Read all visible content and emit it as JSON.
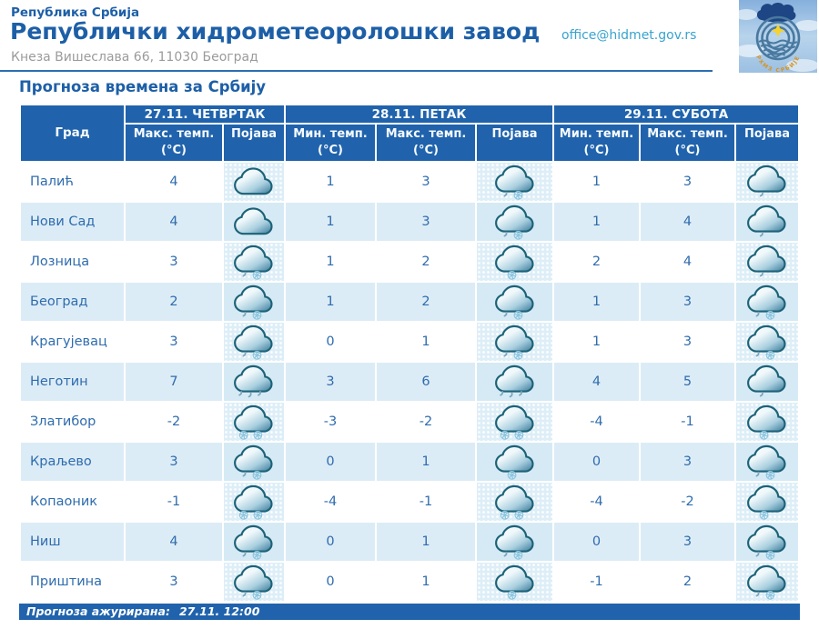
{
  "colors": {
    "header_bg": "#2063ac",
    "row_alt_bg": "#dcecf6",
    "icon_cell_bg": "#ddeef7",
    "text_blue": "#2f6cae",
    "title_blue": "#1d5fa7",
    "email_link": "#38a3cf",
    "divider": "#2d6cb4"
  },
  "header": {
    "country": "Република Србија",
    "org_title": "Републички хидрометеоролошки завод",
    "address": "Кнеза Вишеслава 66, 11030 Београд",
    "email": "office@hidmet.gov.rs",
    "logo_caption": "РХМЗ СРБИЈЕ"
  },
  "page_title": "Прогноза времена за Србију",
  "table": {
    "city_header": "Град",
    "day_groups": [
      {
        "label": "27.11. ЧЕТВРТАК"
      },
      {
        "label": "28.11. ПЕТАК"
      },
      {
        "label": "29.11. СУБОТА"
      }
    ],
    "columns": [
      {
        "label": "Макс. темп.",
        "unit": "(°C)"
      },
      {
        "label": "Појава",
        "unit": ""
      },
      {
        "label": "Мин. темп.",
        "unit": "(°C)"
      },
      {
        "label": "Макс. темп.",
        "unit": "(°C)"
      },
      {
        "label": "Појава",
        "unit": ""
      },
      {
        "label": "Мин. темп.",
        "unit": "(°C)"
      },
      {
        "label": "Макс. темп.",
        "unit": "(°C)"
      },
      {
        "label": "Појава",
        "unit": ""
      }
    ],
    "rows": [
      {
        "city": "Палић",
        "day1": {
          "max": 4,
          "icon": "cloudy"
        },
        "day2": {
          "min": 1,
          "max": 3,
          "icon": "cloud-rain-snow"
        },
        "day3": {
          "min": 1,
          "max": 3,
          "icon": "cloud-light-rain"
        }
      },
      {
        "city": "Нови Сад",
        "day1": {
          "max": 4,
          "icon": "cloudy"
        },
        "day2": {
          "min": 1,
          "max": 3,
          "icon": "cloud-rain-snow"
        },
        "day3": {
          "min": 1,
          "max": 4,
          "icon": "cloud-light-rain"
        }
      },
      {
        "city": "Лозница",
        "day1": {
          "max": 3,
          "icon": "cloud-rain-snow"
        },
        "day2": {
          "min": 1,
          "max": 2,
          "icon": "cloud-light-snow"
        },
        "day3": {
          "min": 2,
          "max": 4,
          "icon": "cloud-light-rain"
        }
      },
      {
        "city": "Београд",
        "day1": {
          "max": 2,
          "icon": "cloud-rain-snow"
        },
        "day2": {
          "min": 1,
          "max": 2,
          "icon": "cloud-rain-snow"
        },
        "day3": {
          "min": 1,
          "max": 3,
          "icon": "cloud-rain-snow"
        }
      },
      {
        "city": "Крагујевац",
        "day1": {
          "max": 3,
          "icon": "cloud-rain-snow"
        },
        "day2": {
          "min": 0,
          "max": 1,
          "icon": "cloud-rain-snow"
        },
        "day3": {
          "min": 1,
          "max": 3,
          "icon": "cloud-rain-snow"
        }
      },
      {
        "city": "Неготин",
        "day1": {
          "max": 7,
          "icon": "cloud-rain"
        },
        "day2": {
          "min": 3,
          "max": 6,
          "icon": "cloud-rain"
        },
        "day3": {
          "min": 4,
          "max": 5,
          "icon": "cloud-light-rain"
        }
      },
      {
        "city": "Златибор",
        "day1": {
          "max": -2,
          "icon": "cloud-snow"
        },
        "day2": {
          "min": -3,
          "max": -2,
          "icon": "cloud-snow"
        },
        "day3": {
          "min": -4,
          "max": -1,
          "icon": "cloud-light-snow"
        }
      },
      {
        "city": "Краљево",
        "day1": {
          "max": 3,
          "icon": "cloud-rain-snow"
        },
        "day2": {
          "min": 0,
          "max": 1,
          "icon": "cloud-light-snow"
        },
        "day3": {
          "min": 0,
          "max": 3,
          "icon": "cloud-rain-snow"
        }
      },
      {
        "city": "Копаоник",
        "day1": {
          "max": -1,
          "icon": "cloud-snow"
        },
        "day2": {
          "min": -4,
          "max": -1,
          "icon": "cloud-snow"
        },
        "day3": {
          "min": -4,
          "max": -2,
          "icon": "cloud-light-snow"
        }
      },
      {
        "city": "Ниш",
        "day1": {
          "max": 4,
          "icon": "cloud-rain-snow"
        },
        "day2": {
          "min": 0,
          "max": 1,
          "icon": "cloud-rain-snow"
        },
        "day3": {
          "min": 0,
          "max": 3,
          "icon": "cloud-rain-snow"
        }
      },
      {
        "city": "Приштина",
        "day1": {
          "max": 3,
          "icon": "cloud-rain-snow"
        },
        "day2": {
          "min": 0,
          "max": 1,
          "icon": "cloud-light-snow"
        },
        "day3": {
          "min": -1,
          "max": 2,
          "icon": "cloud-rain-snow"
        }
      }
    ]
  },
  "footer": {
    "updated_label": "Прогноза ажурирана:",
    "updated_value": "27.11. 12:00"
  }
}
